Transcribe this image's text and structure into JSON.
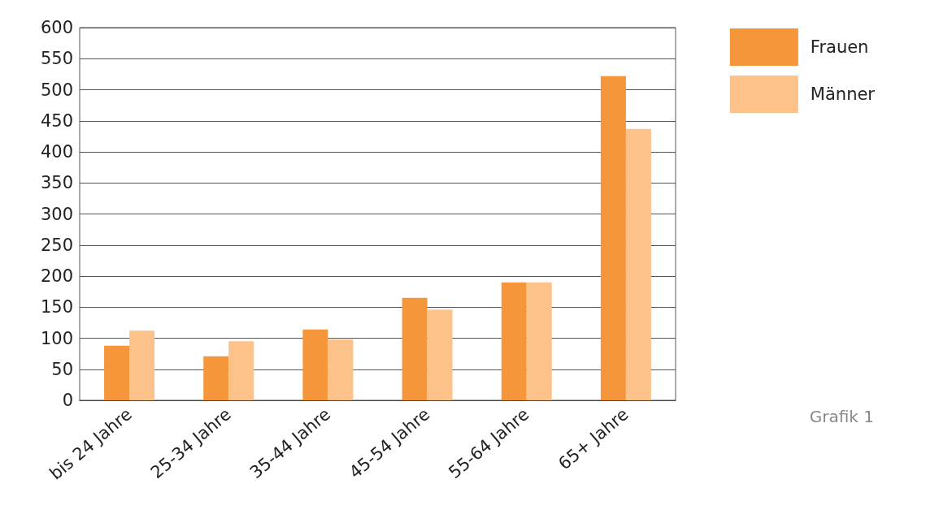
{
  "chart_data": {
    "type": "bar",
    "categories": [
      "bis 24 Jahre",
      "25-34 Jahre",
      "35-44 Jahre",
      "45-54 Jahre",
      "55-64 Jahre",
      "65+ Jahre"
    ],
    "series": [
      {
        "name": "Frauen",
        "color": "#f5963a",
        "values": [
          88,
          71,
          114,
          165,
          190,
          522
        ]
      },
      {
        "name": "Männer",
        "color": "#fdc289",
        "values": [
          112,
          95,
          98,
          146,
          190,
          437
        ]
      }
    ],
    "ylim": [
      0,
      600
    ],
    "yticks": [
      0,
      50,
      100,
      150,
      200,
      250,
      300,
      350,
      400,
      450,
      500,
      550,
      600
    ],
    "grid": "y",
    "legend": "top right",
    "annotations": [
      "Grafik 1"
    ]
  }
}
